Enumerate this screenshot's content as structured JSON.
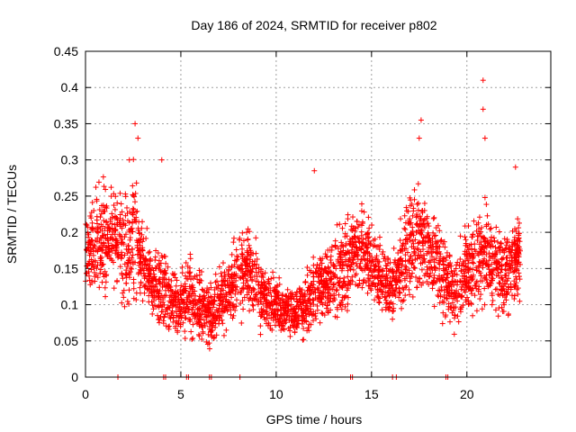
{
  "chart_data": {
    "type": "scatter",
    "title": "Day 186 of 2024, SRMTID for receiver p802",
    "xlabel": "GPS time / hours",
    "ylabel": "SRMTID / TECUs",
    "xlim": [
      0,
      24.4
    ],
    "ylim": [
      0,
      0.45
    ],
    "xticks": [
      0,
      5,
      10,
      15,
      20
    ],
    "xtick_labels": [
      "0",
      "5",
      "10",
      "15",
      "20"
    ],
    "yticks": [
      0,
      0.05,
      0.1,
      0.15,
      0.2,
      0.25,
      0.3,
      0.35,
      0.4,
      0.45
    ],
    "ytick_labels": [
      "0",
      "0.05",
      "0.1",
      "0.15",
      "0.2",
      "0.25",
      "0.3",
      "0.35",
      "0.4",
      "0.45"
    ],
    "grid": true,
    "marker": "plus",
    "color": "#ff0000",
    "series": [
      {
        "name": "SRMTID p802",
        "x": [
          0.0,
          0.5,
          1.0,
          1.5,
          2.0,
          2.5,
          3.0,
          3.5,
          4.0,
          4.5,
          5.0,
          5.5,
          6.0,
          6.5,
          7.0,
          7.5,
          8.0,
          8.5,
          9.0,
          9.5,
          10.0,
          10.5,
          11.0,
          11.5,
          12.0,
          12.5,
          13.0,
          13.5,
          14.0,
          14.5,
          15.0,
          15.5,
          16.0,
          16.5,
          17.0,
          17.5,
          18.0,
          18.5,
          19.0,
          19.5,
          20.0,
          20.5,
          21.0,
          21.5,
          22.0,
          22.5,
          22.8
        ],
        "y": [
          0.17,
          0.18,
          0.19,
          0.2,
          0.18,
          0.2,
          0.16,
          0.13,
          0.12,
          0.11,
          0.1,
          0.11,
          0.1,
          0.09,
          0.1,
          0.12,
          0.14,
          0.15,
          0.12,
          0.11,
          0.1,
          0.09,
          0.09,
          0.1,
          0.12,
          0.13,
          0.14,
          0.15,
          0.17,
          0.18,
          0.16,
          0.14,
          0.12,
          0.15,
          0.18,
          0.19,
          0.17,
          0.15,
          0.13,
          0.12,
          0.15,
          0.16,
          0.17,
          0.15,
          0.14,
          0.16,
          0.17
        ],
        "spread": [
          0.05,
          0.06,
          0.07,
          0.06,
          0.07,
          0.08,
          0.05,
          0.04,
          0.05,
          0.04,
          0.04,
          0.05,
          0.04,
          0.04,
          0.04,
          0.05,
          0.05,
          0.05,
          0.05,
          0.04,
          0.03,
          0.03,
          0.03,
          0.04,
          0.04,
          0.05,
          0.05,
          0.06,
          0.06,
          0.05,
          0.05,
          0.05,
          0.04,
          0.05,
          0.06,
          0.07,
          0.06,
          0.05,
          0.05,
          0.05,
          0.05,
          0.06,
          0.07,
          0.06,
          0.05,
          0.05,
          0.05
        ]
      }
    ],
    "spikes": [
      {
        "x": 2.3,
        "y": 0.3
      },
      {
        "x": 2.6,
        "y": 0.35
      },
      {
        "x": 2.75,
        "y": 0.33
      },
      {
        "x": 4.0,
        "y": 0.3
      },
      {
        "x": 12.0,
        "y": 0.285
      },
      {
        "x": 17.6,
        "y": 0.355
      },
      {
        "x": 17.5,
        "y": 0.33
      },
      {
        "x": 20.85,
        "y": 0.41
      },
      {
        "x": 20.85,
        "y": 0.37
      },
      {
        "x": 20.95,
        "y": 0.33
      },
      {
        "x": 22.55,
        "y": 0.29
      }
    ],
    "zero_points": [
      1.7,
      4.1,
      4.2,
      5.3,
      5.4,
      6.5,
      6.6,
      8.1,
      13.9,
      14.0,
      16.1,
      16.3,
      18.9,
      19.0
    ]
  }
}
